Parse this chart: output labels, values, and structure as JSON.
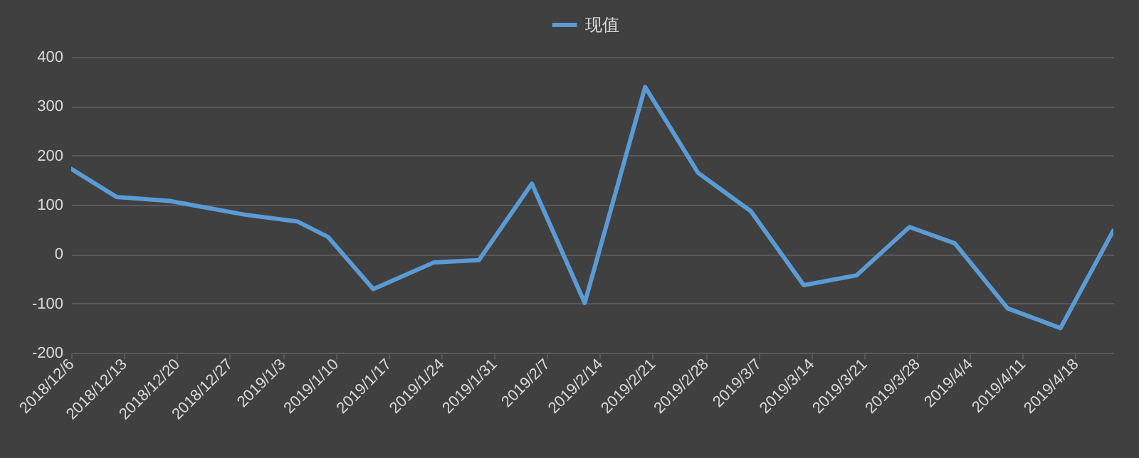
{
  "chart_data": {
    "type": "line",
    "x": [
      "2018-12-06",
      "2018-12-12",
      "2018-12-19",
      "2018-12-29",
      "2019-01-05",
      "2019-01-09",
      "2019-01-15",
      "2019-01-23",
      "2019-01-29",
      "2019-02-05",
      "2019-02-12",
      "2019-02-20",
      "2019-02-27",
      "2019-03-06",
      "2019-03-13",
      "2019-03-20",
      "2019-03-27",
      "2019-04-02",
      "2019-04-09",
      "2019-04-16",
      "2019-04-23"
    ],
    "series": [
      {
        "name": "现值",
        "color": "#5b9bd5",
        "values": [
          173,
          116,
          108,
          80,
          66,
          35,
          -71,
          -17,
          -12,
          143,
          -99,
          339,
          165,
          87,
          -63,
          -43,
          55,
          22,
          -110,
          -150,
          48
        ]
      }
    ],
    "xlim": [
      "2018-12-06",
      "2019-04-23"
    ],
    "xticks": [
      {
        "value": "2018-12-06",
        "label": "2018/12/6"
      },
      {
        "value": "2018-12-13",
        "label": "2018/12/13"
      },
      {
        "value": "2018-12-20",
        "label": "2018/12/20"
      },
      {
        "value": "2018-12-27",
        "label": "2018/12/27"
      },
      {
        "value": "2019-01-03",
        "label": "2019/1/3"
      },
      {
        "value": "2019-01-10",
        "label": "2019/1/10"
      },
      {
        "value": "2019-01-17",
        "label": "2019/1/17"
      },
      {
        "value": "2019-01-24",
        "label": "2019/1/24"
      },
      {
        "value": "2019-01-31",
        "label": "2019/1/31"
      },
      {
        "value": "2019-02-07",
        "label": "2019/2/7"
      },
      {
        "value": "2019-02-14",
        "label": "2019/2/14"
      },
      {
        "value": "2019-02-21",
        "label": "2019/2/21"
      },
      {
        "value": "2019-02-28",
        "label": "2019/2/28"
      },
      {
        "value": "2019-03-07",
        "label": "2019/3/7"
      },
      {
        "value": "2019-03-14",
        "label": "2019/3/14"
      },
      {
        "value": "2019-03-21",
        "label": "2019/3/21"
      },
      {
        "value": "2019-03-28",
        "label": "2019/3/28"
      },
      {
        "value": "2019-04-04",
        "label": "2019/4/4"
      },
      {
        "value": "2019-04-11",
        "label": "2019/4/11"
      },
      {
        "value": "2019-04-18",
        "label": "2019/4/18"
      }
    ],
    "ylim": [
      -200,
      400
    ],
    "yticks": [
      -200,
      -100,
      0,
      100,
      200,
      300,
      400
    ],
    "grid": "y",
    "legend": "top",
    "marker": "none",
    "line_style": "solid"
  }
}
